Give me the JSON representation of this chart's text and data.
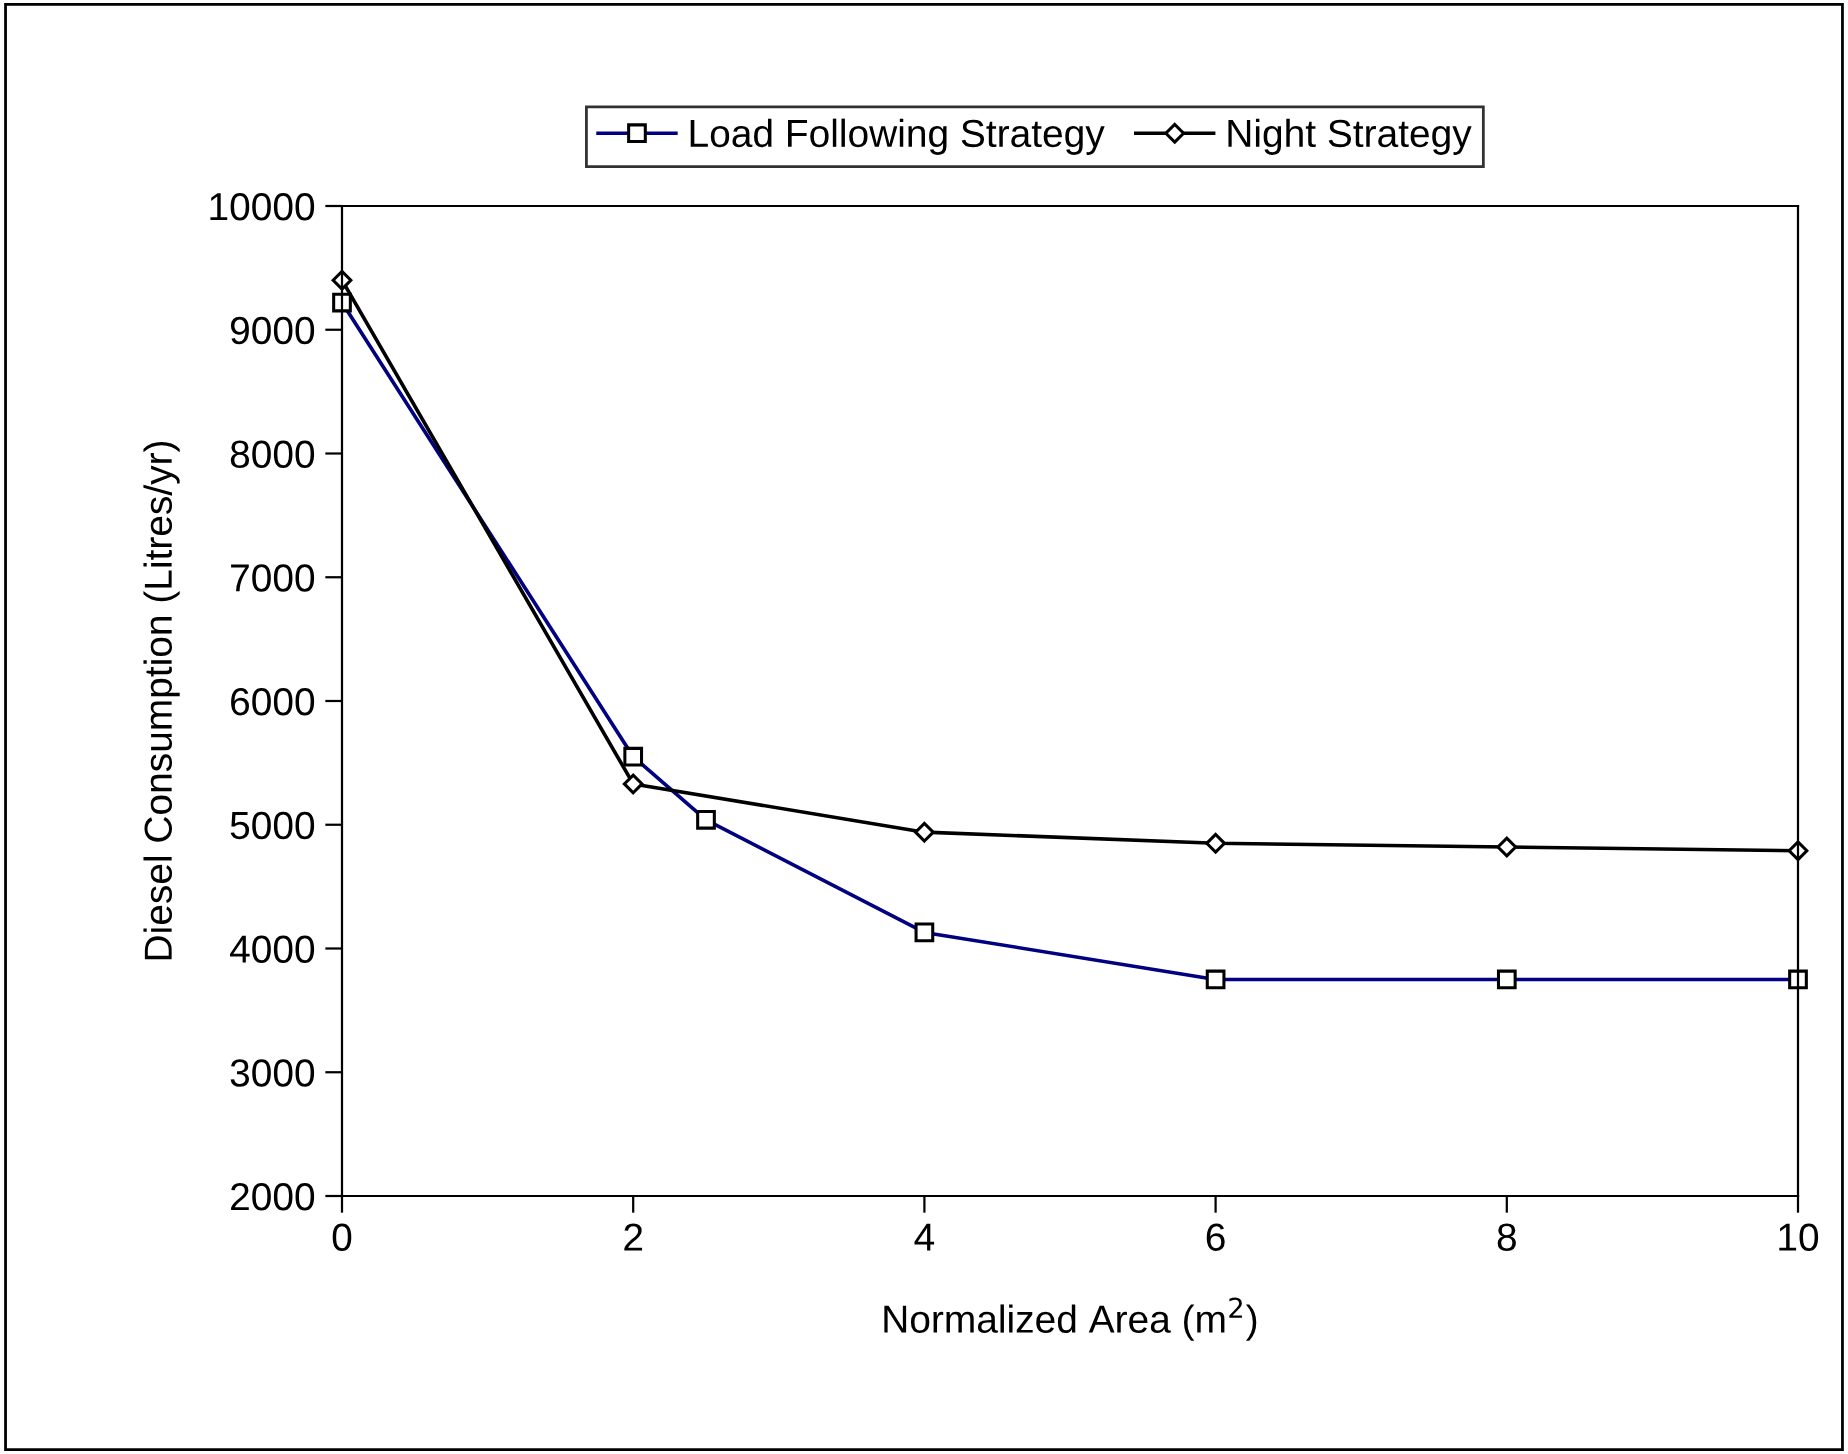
{
  "chart_data": {
    "type": "line",
    "xlabel": "Normalized Area (m$^{2}$)",
    "ylabel": "Diesel Consumption (Litres/yr)",
    "xlim": [
      0,
      10
    ],
    "xticks": [
      0,
      2,
      4,
      6,
      8,
      10
    ],
    "ylim": [
      2000,
      10000
    ],
    "yticks": [
      2000,
      3000,
      4000,
      5000,
      6000,
      7000,
      8000,
      9000,
      10000
    ],
    "grid": false,
    "legend": "top",
    "series": [
      {
        "name": "Load Following Strategy",
        "color": "#000080",
        "marker": "square",
        "x": [
          0,
          2,
          2.5,
          4,
          6,
          8,
          10
        ],
        "values": [
          9220,
          5550,
          5040,
          4130,
          3750,
          3750,
          3750
        ]
      },
      {
        "name": "Night Strategy",
        "color": "#000000",
        "marker": "diamond",
        "x": [
          0,
          2,
          4,
          6,
          8,
          10
        ],
        "values": [
          9400,
          5330,
          4940,
          4850,
          4820,
          4790
        ]
      }
    ]
  }
}
